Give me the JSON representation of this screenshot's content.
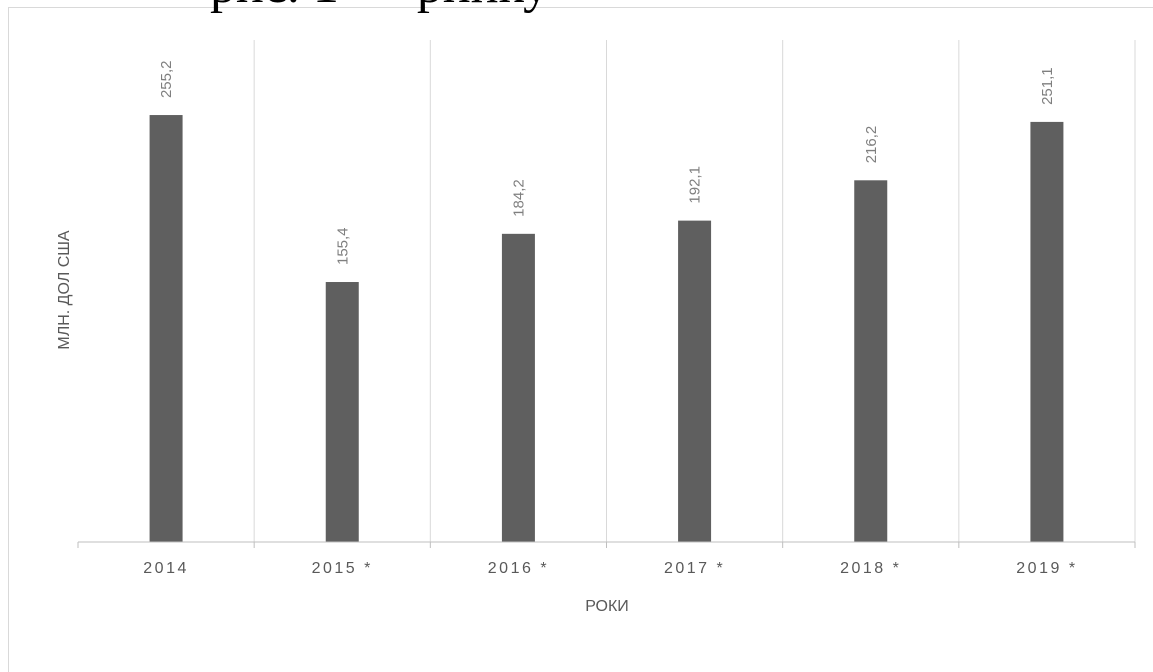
{
  "chart_data": {
    "type": "bar",
    "title": "",
    "xlabel": "РОКИ",
    "ylabel": "МЛН. ДОЛ США",
    "categories": [
      "2014",
      "2015 *",
      "2016 *",
      "2017 *",
      "2018 *",
      "2019 *"
    ],
    "values": [
      255.2,
      155.4,
      184.2,
      192.1,
      216.2,
      251.1
    ],
    "value_labels": [
      "255,2",
      "155,4",
      "184,2",
      "192,1",
      "216,2",
      "251,1"
    ],
    "ylim": [
      0,
      300
    ],
    "grid": "vertical category separators",
    "legend": "none",
    "colors": {
      "bar": "#5f5f5f",
      "axis": "#bfbfbf",
      "grid": "#d9d9d9",
      "label": "#595959",
      "data_label": "#7f7f7f"
    }
  }
}
